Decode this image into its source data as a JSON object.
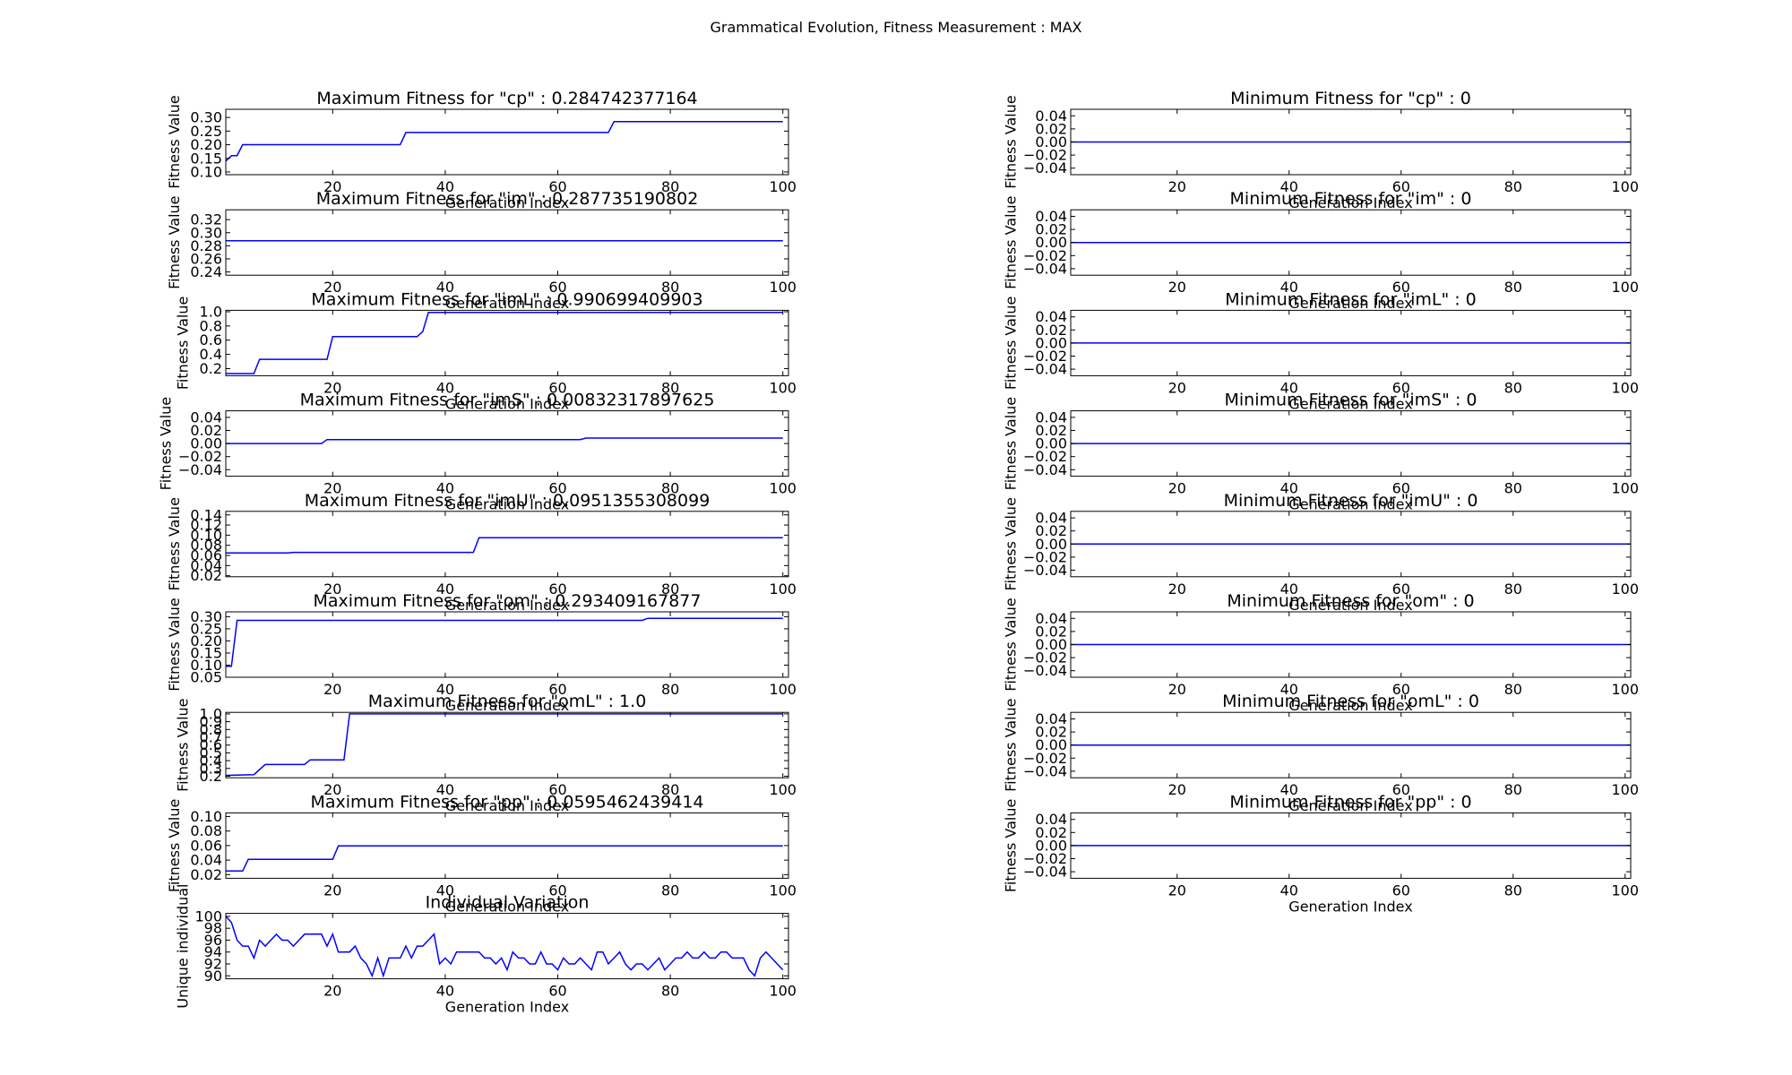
{
  "figure_title": "Grammatical Evolution, Fitness Measurement : MAX",
  "colors": {
    "line": "#0000ff",
    "axes": "#000000",
    "background": "#ffffff"
  },
  "chart_data": [
    {
      "type": "line",
      "column": "left",
      "row": 0,
      "title": "Maximum Fitness for \"cp\" : 0.284742377164",
      "xlabel": "Generation Index",
      "ylabel": "Fitness Value",
      "xlim": [
        1,
        101
      ],
      "ylim": [
        0.09,
        0.33
      ],
      "xticks": [
        20,
        40,
        60,
        80,
        100
      ],
      "yticks": [
        0.1,
        0.15,
        0.2,
        0.25,
        0.3
      ],
      "yticklabels": [
        "0.10",
        "0.15",
        "0.20",
        "0.25",
        "0.30"
      ],
      "points": [
        [
          1,
          0.14
        ],
        [
          2,
          0.16
        ],
        [
          3,
          0.16
        ],
        [
          4,
          0.2
        ],
        [
          32,
          0.2
        ],
        [
          33,
          0.245
        ],
        [
          69,
          0.245
        ],
        [
          70,
          0.2847
        ],
        [
          100,
          0.2847
        ]
      ]
    },
    {
      "type": "line",
      "column": "left",
      "row": 1,
      "title": "Maximum Fitness for \"im\" : 0.287735190802",
      "xlabel": "Generation Index",
      "ylabel": "Fitness Value",
      "xlim": [
        1,
        101
      ],
      "ylim": [
        0.235,
        0.335
      ],
      "xticks": [
        20,
        40,
        60,
        80,
        100
      ],
      "yticks": [
        0.24,
        0.26,
        0.28,
        0.3,
        0.32
      ],
      "yticklabels": [
        "0.24",
        "0.26",
        "0.28",
        "0.30",
        "0.32"
      ],
      "points": [
        [
          1,
          0.2877
        ],
        [
          100,
          0.2877
        ]
      ]
    },
    {
      "type": "line",
      "column": "left",
      "row": 2,
      "title": "Maximum Fitness for \"imL\" : 0.990699409903",
      "xlabel": "Generation Index",
      "ylabel": "Fitness Value",
      "xlim": [
        1,
        101
      ],
      "ylim": [
        0.1,
        1.02
      ],
      "xticks": [
        20,
        40,
        60,
        80,
        100
      ],
      "yticks": [
        0.2,
        0.4,
        0.6,
        0.8,
        1.0
      ],
      "yticklabels": [
        "0.2",
        "0.4",
        "0.6",
        "0.8",
        "1.0"
      ],
      "points": [
        [
          1,
          0.13
        ],
        [
          6,
          0.13
        ],
        [
          7,
          0.33
        ],
        [
          19,
          0.33
        ],
        [
          20,
          0.65
        ],
        [
          35,
          0.65
        ],
        [
          36,
          0.72
        ],
        [
          37,
          0.99
        ],
        [
          100,
          0.9907
        ]
      ]
    },
    {
      "type": "line",
      "column": "left",
      "row": 3,
      "title": "Maximum Fitness for \"imS\" : 0.00832317897625",
      "xlabel": "Generation Index",
      "ylabel": "Fitness Value",
      "xlim": [
        1,
        101
      ],
      "ylim": [
        -0.05,
        0.05
      ],
      "xticks": [
        20,
        40,
        60,
        80,
        100
      ],
      "yticks": [
        -0.04,
        -0.02,
        0.0,
        0.02,
        0.04
      ],
      "yticklabels": [
        "−0.04",
        "−0.02",
        "0.00",
        "0.02",
        "0.04"
      ],
      "points": [
        [
          1,
          0.0
        ],
        [
          18,
          0.0
        ],
        [
          19,
          0.006
        ],
        [
          64,
          0.006
        ],
        [
          65,
          0.0083
        ],
        [
          100,
          0.0083
        ]
      ]
    },
    {
      "type": "line",
      "column": "left",
      "row": 4,
      "title": "Maximum Fitness for \"imU\" : 0.0951355308099",
      "xlabel": "Generation Index",
      "ylabel": "Fitness Value",
      "xlim": [
        1,
        101
      ],
      "ylim": [
        0.018,
        0.147
      ],
      "xticks": [
        20,
        40,
        60,
        80,
        100
      ],
      "yticks": [
        0.02,
        0.04,
        0.06,
        0.08,
        0.1,
        0.12,
        0.14
      ],
      "yticklabels": [
        "0.02",
        "0.04",
        "0.06",
        "0.08",
        "0.10",
        "0.12",
        "0.14"
      ],
      "points": [
        [
          1,
          0.065
        ],
        [
          12,
          0.065
        ],
        [
          13,
          0.066
        ],
        [
          45,
          0.066
        ],
        [
          46,
          0.0951
        ],
        [
          100,
          0.0951
        ]
      ]
    },
    {
      "type": "line",
      "column": "left",
      "row": 5,
      "title": "Maximum Fitness for \"om\" : 0.293409167877",
      "xlabel": "Generation Index",
      "ylabel": "Fitness Value",
      "xlim": [
        1,
        101
      ],
      "ylim": [
        0.05,
        0.32
      ],
      "xticks": [
        20,
        40,
        60,
        80,
        100
      ],
      "yticks": [
        0.05,
        0.1,
        0.15,
        0.2,
        0.25,
        0.3
      ],
      "yticklabels": [
        "0.05",
        "0.10",
        "0.15",
        "0.20",
        "0.25",
        "0.30"
      ],
      "points": [
        [
          1,
          0.095
        ],
        [
          2,
          0.095
        ],
        [
          3,
          0.285
        ],
        [
          75,
          0.285
        ],
        [
          76,
          0.2934
        ],
        [
          100,
          0.2934
        ]
      ]
    },
    {
      "type": "line",
      "column": "left",
      "row": 6,
      "title": "Maximum Fitness for \"omL\" : 1.0",
      "xlabel": "Generation Index",
      "ylabel": "Fitness Value",
      "xlim": [
        1,
        101
      ],
      "ylim": [
        0.18,
        1.02
      ],
      "xticks": [
        20,
        40,
        60,
        80,
        100
      ],
      "yticks": [
        0.2,
        0.3,
        0.4,
        0.5,
        0.6,
        0.7,
        0.8,
        0.9,
        1.0
      ],
      "yticklabels": [
        "0.2",
        "0.3",
        "0.4",
        "0.5",
        "0.6",
        "0.7",
        "0.8",
        "0.9",
        "1.0"
      ],
      "points": [
        [
          1,
          0.21
        ],
        [
          6,
          0.22
        ],
        [
          8,
          0.35
        ],
        [
          15,
          0.35
        ],
        [
          16,
          0.41
        ],
        [
          22,
          0.41
        ],
        [
          23,
          1.0
        ],
        [
          100,
          1.0
        ]
      ]
    },
    {
      "type": "line",
      "column": "left",
      "row": 7,
      "title": "Maximum Fitness for \"pp\" : 0.0595462439414",
      "xlabel": "Generation Index",
      "ylabel": "Fitness Value",
      "xlim": [
        1,
        101
      ],
      "ylim": [
        0.015,
        0.105
      ],
      "xticks": [
        20,
        40,
        60,
        80,
        100
      ],
      "yticks": [
        0.02,
        0.04,
        0.06,
        0.08,
        0.1
      ],
      "yticklabels": [
        "0.02",
        "0.04",
        "0.06",
        "0.08",
        "0.10"
      ],
      "points": [
        [
          1,
          0.025
        ],
        [
          4,
          0.025
        ],
        [
          5,
          0.041
        ],
        [
          20,
          0.041
        ],
        [
          21,
          0.0595
        ],
        [
          100,
          0.0595
        ]
      ]
    },
    {
      "type": "line",
      "column": "left",
      "row": 8,
      "title": "Individual Variation",
      "xlabel": "Generation Index",
      "ylabel": "Unique individual",
      "xlim": [
        1,
        101
      ],
      "ylim": [
        89.5,
        100.5
      ],
      "xticks": [
        20,
        40,
        60,
        80,
        100
      ],
      "yticks": [
        90,
        92,
        94,
        96,
        98,
        100
      ],
      "yticklabels": [
        "90",
        "92",
        "94",
        "96",
        "98",
        "100"
      ],
      "points": [
        [
          1,
          100
        ],
        [
          2,
          99
        ],
        [
          3,
          96
        ],
        [
          4,
          95
        ],
        [
          5,
          95
        ],
        [
          6,
          93
        ],
        [
          7,
          96
        ],
        [
          8,
          95
        ],
        [
          9,
          96
        ],
        [
          10,
          97
        ],
        [
          11,
          96
        ],
        [
          12,
          96
        ],
        [
          13,
          95
        ],
        [
          14,
          96
        ],
        [
          15,
          97
        ],
        [
          16,
          97
        ],
        [
          17,
          97
        ],
        [
          18,
          97
        ],
        [
          19,
          95
        ],
        [
          20,
          97
        ],
        [
          21,
          94
        ],
        [
          22,
          94
        ],
        [
          23,
          94
        ],
        [
          24,
          95
        ],
        [
          25,
          93
        ],
        [
          26,
          92
        ],
        [
          27,
          90
        ],
        [
          28,
          93
        ],
        [
          29,
          90
        ],
        [
          30,
          93
        ],
        [
          31,
          93
        ],
        [
          32,
          93
        ],
        [
          33,
          95
        ],
        [
          34,
          93
        ],
        [
          35,
          95
        ],
        [
          36,
          95
        ],
        [
          37,
          96
        ],
        [
          38,
          97
        ],
        [
          39,
          92
        ],
        [
          40,
          93
        ],
        [
          41,
          92
        ],
        [
          42,
          94
        ],
        [
          43,
          94
        ],
        [
          44,
          94
        ],
        [
          45,
          94
        ],
        [
          46,
          94
        ],
        [
          47,
          93
        ],
        [
          48,
          93
        ],
        [
          49,
          92
        ],
        [
          50,
          93
        ],
        [
          51,
          91
        ],
        [
          52,
          94
        ],
        [
          53,
          93
        ],
        [
          54,
          93
        ],
        [
          55,
          92
        ],
        [
          56,
          92
        ],
        [
          57,
          94
        ],
        [
          58,
          92
        ],
        [
          59,
          92
        ],
        [
          60,
          91
        ],
        [
          61,
          93
        ],
        [
          62,
          92
        ],
        [
          63,
          92
        ],
        [
          64,
          93
        ],
        [
          65,
          92
        ],
        [
          66,
          91
        ],
        [
          67,
          94
        ],
        [
          68,
          94
        ],
        [
          69,
          92
        ],
        [
          70,
          93
        ],
        [
          71,
          94
        ],
        [
          72,
          92
        ],
        [
          73,
          91
        ],
        [
          74,
          92
        ],
        [
          75,
          92
        ],
        [
          76,
          91
        ],
        [
          77,
          92
        ],
        [
          78,
          93
        ],
        [
          79,
          91
        ],
        [
          80,
          92
        ],
        [
          81,
          93
        ],
        [
          82,
          93
        ],
        [
          83,
          94
        ],
        [
          84,
          93
        ],
        [
          85,
          93
        ],
        [
          86,
          94
        ],
        [
          87,
          93
        ],
        [
          88,
          93
        ],
        [
          89,
          94
        ],
        [
          90,
          94
        ],
        [
          91,
          93
        ],
        [
          92,
          93
        ],
        [
          93,
          93
        ],
        [
          94,
          91
        ],
        [
          95,
          90
        ],
        [
          96,
          93
        ],
        [
          97,
          94
        ],
        [
          98,
          93
        ],
        [
          99,
          92
        ],
        [
          100,
          91
        ]
      ]
    },
    {
      "type": "line",
      "column": "right",
      "row": 0,
      "title": "Minimum Fitness for \"cp\" : 0",
      "xlabel": "Generation Index",
      "ylabel": "Fitness Value",
      "xlim": [
        1,
        101
      ],
      "ylim": [
        -0.05,
        0.05
      ],
      "xticks": [
        20,
        40,
        60,
        80,
        100
      ],
      "yticks": [
        -0.04,
        -0.02,
        0.0,
        0.02,
        0.04
      ],
      "yticklabels": [
        "−0.04",
        "−0.02",
        "0.00",
        "0.02",
        "0.04"
      ],
      "points": [
        [
          1,
          0
        ],
        [
          101,
          0
        ]
      ]
    },
    {
      "type": "line",
      "column": "right",
      "row": 1,
      "title": "Minimum Fitness for \"im\" : 0",
      "xlabel": "Generation Index",
      "ylabel": "Fitness Value",
      "xlim": [
        1,
        101
      ],
      "ylim": [
        -0.05,
        0.05
      ],
      "xticks": [
        20,
        40,
        60,
        80,
        100
      ],
      "yticks": [
        -0.04,
        -0.02,
        0.0,
        0.02,
        0.04
      ],
      "yticklabels": [
        "−0.04",
        "−0.02",
        "0.00",
        "0.02",
        "0.04"
      ],
      "points": [
        [
          1,
          0
        ],
        [
          101,
          0
        ]
      ]
    },
    {
      "type": "line",
      "column": "right",
      "row": 2,
      "title": "Minimum Fitness for \"imL\" : 0",
      "xlabel": "Generation Index",
      "ylabel": "Fitness Value",
      "xlim": [
        1,
        101
      ],
      "ylim": [
        -0.05,
        0.05
      ],
      "xticks": [
        20,
        40,
        60,
        80,
        100
      ],
      "yticks": [
        -0.04,
        -0.02,
        0.0,
        0.02,
        0.04
      ],
      "yticklabels": [
        "−0.04",
        "−0.02",
        "0.00",
        "0.02",
        "0.04"
      ],
      "points": [
        [
          1,
          0
        ],
        [
          101,
          0
        ]
      ]
    },
    {
      "type": "line",
      "column": "right",
      "row": 3,
      "title": "Minimum Fitness for \"imS\" : 0",
      "xlabel": "Generation Index",
      "ylabel": "Fitness Value",
      "xlim": [
        1,
        101
      ],
      "ylim": [
        -0.05,
        0.05
      ],
      "xticks": [
        20,
        40,
        60,
        80,
        100
      ],
      "yticks": [
        -0.04,
        -0.02,
        0.0,
        0.02,
        0.04
      ],
      "yticklabels": [
        "−0.04",
        "−0.02",
        "0.00",
        "0.02",
        "0.04"
      ],
      "points": [
        [
          1,
          0
        ],
        [
          101,
          0
        ]
      ]
    },
    {
      "type": "line",
      "column": "right",
      "row": 4,
      "title": "Minimum Fitness for \"imU\" : 0",
      "xlabel": "Generation Index",
      "ylabel": "Fitness Value",
      "xlim": [
        1,
        101
      ],
      "ylim": [
        -0.05,
        0.05
      ],
      "xticks": [
        20,
        40,
        60,
        80,
        100
      ],
      "yticks": [
        -0.04,
        -0.02,
        0.0,
        0.02,
        0.04
      ],
      "yticklabels": [
        "−0.04",
        "−0.02",
        "0.00",
        "0.02",
        "0.04"
      ],
      "points": [
        [
          1,
          0
        ],
        [
          101,
          0
        ]
      ]
    },
    {
      "type": "line",
      "column": "right",
      "row": 5,
      "title": "Minimum Fitness for \"om\" : 0",
      "xlabel": "Generation Index",
      "ylabel": "Fitness Value",
      "xlim": [
        1,
        101
      ],
      "ylim": [
        -0.05,
        0.05
      ],
      "xticks": [
        20,
        40,
        60,
        80,
        100
      ],
      "yticks": [
        -0.04,
        -0.02,
        0.0,
        0.02,
        0.04
      ],
      "yticklabels": [
        "−0.04",
        "−0.02",
        "0.00",
        "0.02",
        "0.04"
      ],
      "points": [
        [
          1,
          0
        ],
        [
          101,
          0
        ]
      ]
    },
    {
      "type": "line",
      "column": "right",
      "row": 6,
      "title": "Minimum Fitness for \"omL\" : 0",
      "xlabel": "Generation Index",
      "ylabel": "Fitness Value",
      "xlim": [
        1,
        101
      ],
      "ylim": [
        -0.05,
        0.05
      ],
      "xticks": [
        20,
        40,
        60,
        80,
        100
      ],
      "yticks": [
        -0.04,
        -0.02,
        0.0,
        0.02,
        0.04
      ],
      "yticklabels": [
        "−0.04",
        "−0.02",
        "0.00",
        "0.02",
        "0.04"
      ],
      "points": [
        [
          1,
          0
        ],
        [
          101,
          0
        ]
      ]
    },
    {
      "type": "line",
      "column": "right",
      "row": 7,
      "title": "Minimum Fitness for \"pp\" : 0",
      "xlabel": "Generation Index",
      "ylabel": "Fitness Value",
      "xlim": [
        1,
        101
      ],
      "ylim": [
        -0.05,
        0.05
      ],
      "xticks": [
        20,
        40,
        60,
        80,
        100
      ],
      "yticks": [
        -0.04,
        -0.02,
        0.0,
        0.02,
        0.04
      ],
      "yticklabels": [
        "−0.04",
        "−0.02",
        "0.00",
        "0.02",
        "0.04"
      ],
      "points": [
        [
          1,
          0
        ],
        [
          101,
          0
        ]
      ]
    }
  ]
}
